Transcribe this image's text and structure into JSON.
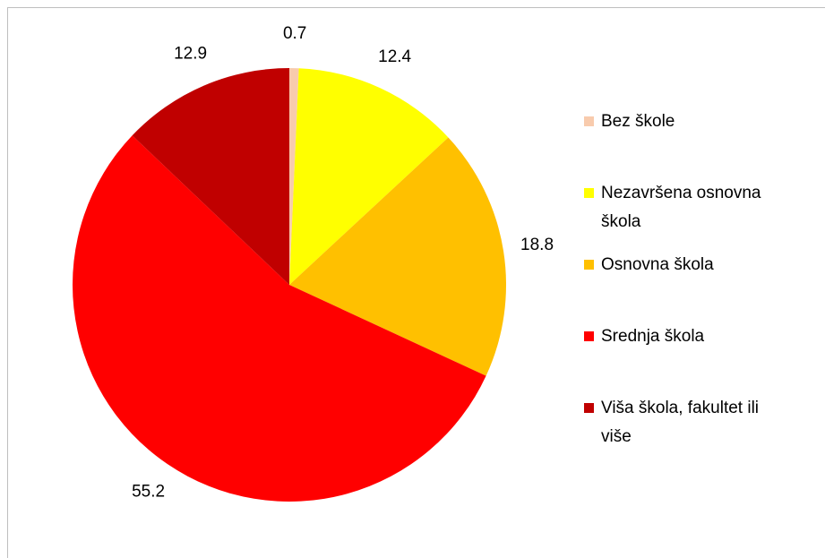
{
  "chart_data": {
    "type": "pie",
    "categories": [
      "Bez škole",
      "Nezavršena osnovna škola",
      "Osnovna škola",
      "Srednja škola",
      "Viša škola, fakultet ili više"
    ],
    "values": [
      0.7,
      12.4,
      18.8,
      55.2,
      12.9
    ],
    "colors": [
      "#f8cbad",
      "#ffff00",
      "#ffc000",
      "#ff0000",
      "#c00000"
    ],
    "legend": "right"
  }
}
